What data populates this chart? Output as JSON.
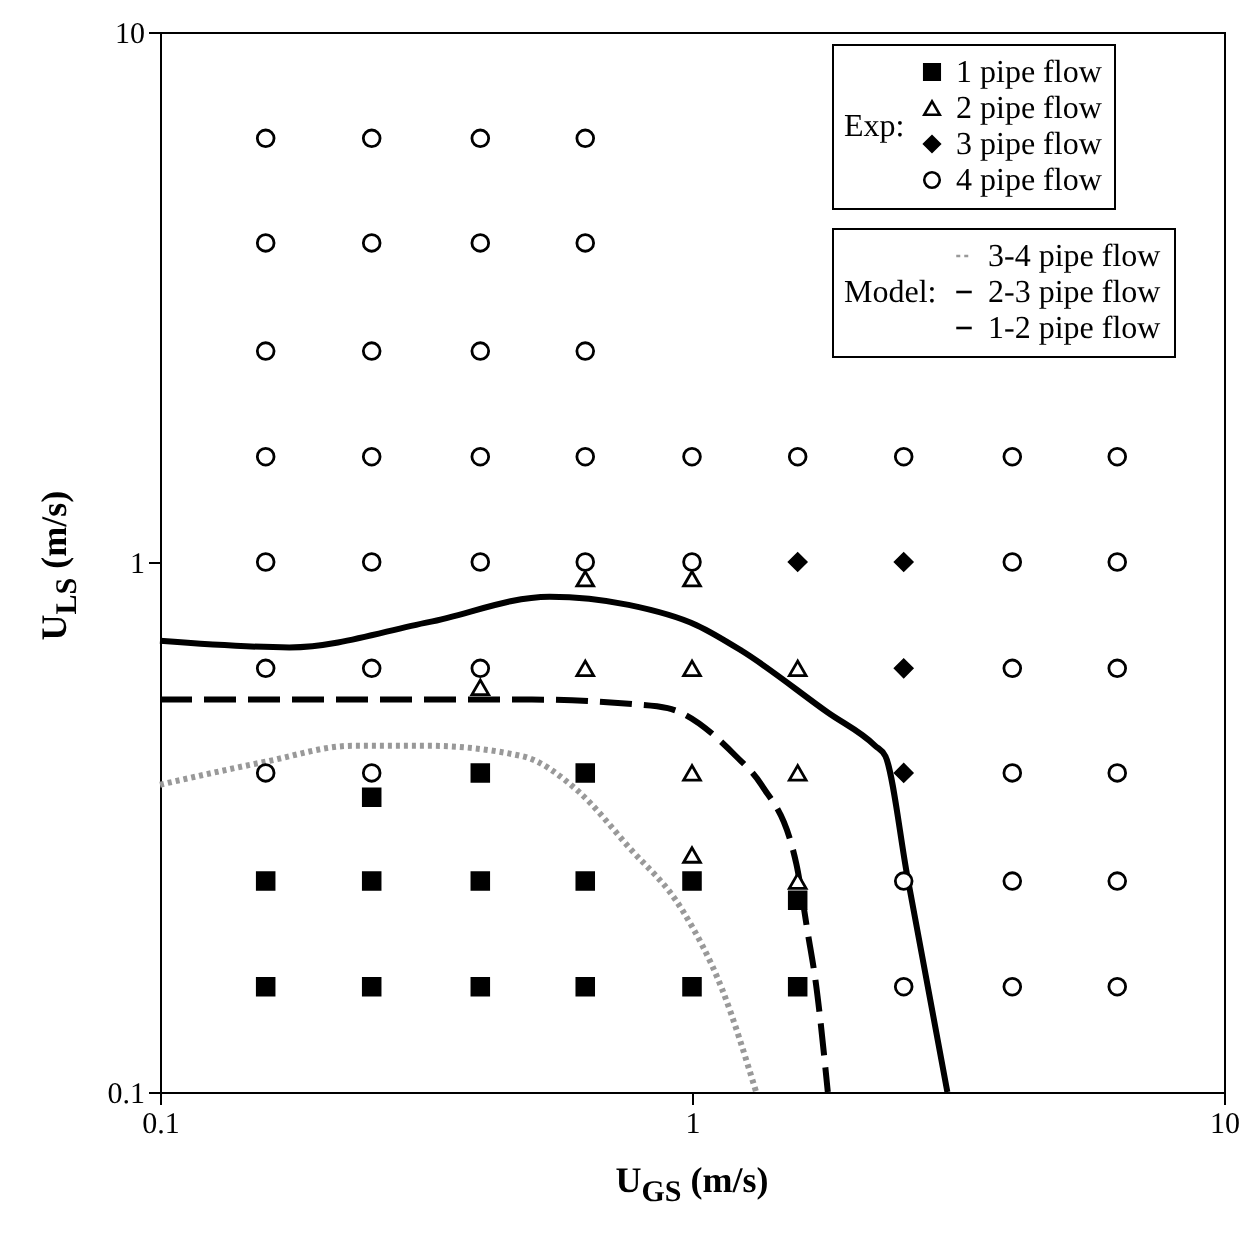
{
  "chart_data": {
    "type": "scatter",
    "xlabel": "U$_{GS}$ (m/s)",
    "ylabel": "U$_{LS}$ (m/s)",
    "log": "xy",
    "xlim": [
      0.1,
      10
    ],
    "ylim": [
      0.1,
      10
    ],
    "xticks": [
      0.1,
      1,
      10
    ],
    "yticks": [
      0.1,
      1,
      10
    ],
    "grid": false,
    "legend": "top right",
    "annotations": [
      "Exp:",
      "Model:"
    ],
    "series": [
      {
        "name": "1 pipe flow",
        "color": "#000000",
        "marker": "square",
        "x": [
          0.158,
          0.25,
          0.4,
          0.63,
          1,
          1.58,
          0.158,
          0.25,
          0.4,
          0.63,
          1,
          1.58,
          0.25,
          0.4,
          0.63
        ],
        "values": [
          0.158,
          0.158,
          0.158,
          0.158,
          0.158,
          0.158,
          0.25,
          0.25,
          0.25,
          0.25,
          0.25,
          0.23,
          0.36,
          0.4,
          0.4
        ]
      },
      {
        "name": "2 pipe flow",
        "color": "#000000",
        "marker": "triangle",
        "x": [
          0.63,
          1,
          0.4,
          0.63,
          1,
          1.58,
          1,
          1.58,
          1,
          1.58
        ],
        "values": [
          0.93,
          0.93,
          0.58,
          0.63,
          0.63,
          0.63,
          0.4,
          0.4,
          0.28,
          0.25
        ]
      },
      {
        "name": "3 pipe flow",
        "color": "#000000",
        "marker": "diamond",
        "x": [
          1.58,
          2.5,
          2.5,
          2.5
        ],
        "values": [
          1,
          1,
          0.63,
          0.4
        ]
      },
      {
        "name": "4 pipe flow",
        "color": "#000000",
        "marker": "circle",
        "x": [
          0.158,
          0.25,
          0.4,
          0.63,
          0.158,
          0.25,
          0.4,
          0.63,
          0.158,
          0.25,
          0.4,
          0.63,
          0.158,
          0.25,
          0.4,
          0.63,
          1,
          1.58,
          2.5,
          4,
          6.3,
          0.158,
          0.25,
          0.4,
          0.63,
          1,
          4,
          6.3,
          0.158,
          0.25,
          0.4,
          4,
          6.3,
          0.158,
          0.25,
          4,
          6.3,
          2.5,
          4,
          6.3,
          2.5,
          4,
          6.3
        ],
        "values": [
          6.3,
          6.3,
          6.3,
          6.3,
          4,
          4,
          4,
          4,
          2.5,
          2.5,
          2.5,
          2.5,
          1.58,
          1.58,
          1.58,
          1.58,
          1.58,
          1.58,
          1.58,
          1.58,
          1.58,
          1,
          1,
          1,
          1,
          1,
          1,
          1,
          0.63,
          0.63,
          0.63,
          0.63,
          0.63,
          0.4,
          0.4,
          0.4,
          0.4,
          0.25,
          0.25,
          0.25,
          0.158,
          0.158,
          0.158
        ]
      },
      {
        "name": "3-4 pipe flow",
        "type": "line",
        "line_style": "dotted",
        "color": "#999999",
        "x": [
          0.1,
          0.158,
          0.23,
          0.32,
          0.48,
          0.61,
          0.76,
          0.96,
          1.14,
          1.32
        ],
        "values": [
          0.38,
          0.42,
          0.45,
          0.45,
          0.43,
          0.37,
          0.29,
          0.22,
          0.156,
          0.1
        ]
      },
      {
        "name": "2-3 pipe flow",
        "type": "line",
        "line_style": "dashed",
        "color": "#000000",
        "x": [
          0.1,
          0.3,
          0.5,
          0.76,
          0.9,
          1.21,
          1.35,
          1.57,
          1.65,
          1.71,
          1.8
        ],
        "values": [
          0.55,
          0.55,
          0.55,
          0.54,
          0.53,
          0.43,
          0.38,
          0.27,
          0.2,
          0.16,
          0.1
        ]
      },
      {
        "name": "1-2 pipe flow",
        "type": "line",
        "line_style": "solid",
        "color": "#000000",
        "x": [
          0.1,
          0.175,
          0.32,
          0.54,
          0.76,
          1.02,
          1.24,
          1.8,
          2.21,
          2.31,
          2.54,
          3.02
        ],
        "values": [
          0.71,
          0.69,
          0.77,
          0.86,
          0.83,
          0.76,
          0.68,
          0.52,
          0.45,
          0.43,
          0.255,
          0.1
        ]
      }
    ]
  }
}
